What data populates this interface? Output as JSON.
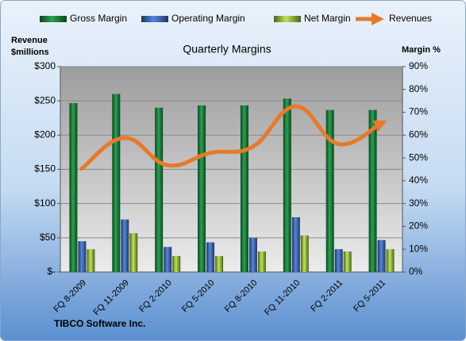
{
  "chart_data": {
    "type": "bar_line",
    "title": "Quarterly Margins",
    "y_label": "Revenue $millions",
    "y2_label": "Margin %",
    "footer": "TIBCO Software Inc.",
    "categories": [
      "FQ 8-2009",
      "FQ 11-2009",
      "FQ 2-2010",
      "FQ 5-2010",
      "FQ 8-2010",
      "FQ 11-2010",
      "FQ 2-2011",
      "FQ 5-2011"
    ],
    "series": [
      {
        "name": "Gross Margin",
        "type": "bar",
        "axis": "y2",
        "color": "#1b7a3a",
        "values": [
          74,
          78,
          72,
          73,
          73,
          76,
          71,
          71
        ]
      },
      {
        "name": "Operating Margin",
        "type": "bar",
        "axis": "y2",
        "color": "#3d63a8",
        "values": [
          13.5,
          23,
          11,
          13,
          15,
          24,
          10,
          14
        ]
      },
      {
        "name": "Net Margin",
        "type": "bar",
        "axis": "y2",
        "color": "#8aac3c",
        "values": [
          10,
          17,
          7,
          7,
          9,
          16,
          9,
          10
        ]
      },
      {
        "name": "Revenues",
        "type": "line",
        "axis": "y",
        "color": "#e8792a",
        "values": [
          151,
          196,
          156,
          174,
          183,
          242,
          187,
          217
        ]
      }
    ],
    "ylim": [
      0,
      300
    ],
    "yticks": [
      {
        "value": 0,
        "label": "$-"
      },
      {
        "value": 50,
        "label": "$50"
      },
      {
        "value": 100,
        "label": "$100"
      },
      {
        "value": 150,
        "label": "$150"
      },
      {
        "value": 200,
        "label": "$200"
      },
      {
        "value": 250,
        "label": "$250"
      },
      {
        "value": 300,
        "label": "$300"
      }
    ],
    "y2lim": [
      0,
      90
    ],
    "y2ticks": [
      {
        "value": 0,
        "label": "0%"
      },
      {
        "value": 10,
        "label": "10%"
      },
      {
        "value": 20,
        "label": "20%"
      },
      {
        "value": 30,
        "label": "30%"
      },
      {
        "value": 40,
        "label": "40%"
      },
      {
        "value": 50,
        "label": "50%"
      },
      {
        "value": 60,
        "label": "60%"
      },
      {
        "value": 70,
        "label": "70%"
      },
      {
        "value": 80,
        "label": "80%"
      },
      {
        "value": 90,
        "label": "90%"
      }
    ],
    "grid": true,
    "legend": "top"
  }
}
